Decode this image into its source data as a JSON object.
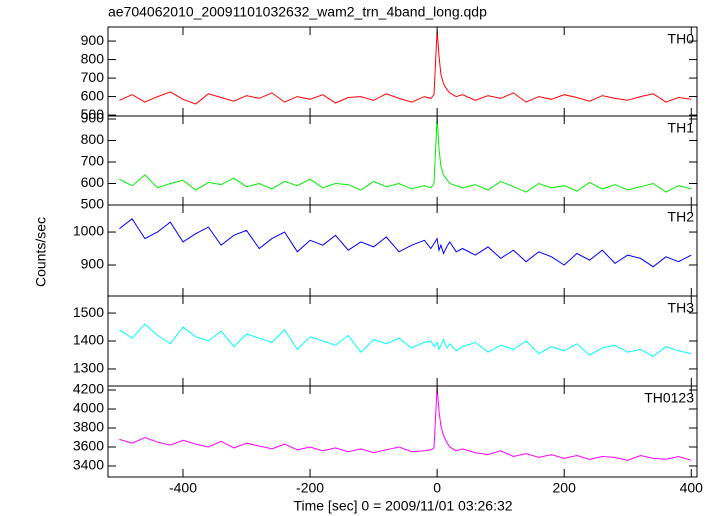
{
  "chart_data": {
    "type": "line",
    "title": "ae704062010_20091101032632_wam2_trn_4band_long.qdp",
    "xlabel": "Time [sec] 0 = 2009/11/01 03:26:32",
    "ylabel": "Counts/sec",
    "xlim": [
      -518,
      409
    ],
    "xticks": [
      -400,
      -200,
      0,
      200,
      400
    ],
    "x": [
      -500,
      -480,
      -460,
      -440,
      -420,
      -400,
      -380,
      -360,
      -340,
      -320,
      -300,
      -280,
      -260,
      -240,
      -220,
      -200,
      -180,
      -160,
      -140,
      -120,
      -100,
      -80,
      -60,
      -40,
      -20,
      -10,
      -5,
      0,
      3,
      6,
      10,
      15,
      20,
      30,
      40,
      60,
      80,
      100,
      120,
      140,
      160,
      180,
      200,
      220,
      240,
      260,
      280,
      300,
      320,
      340,
      360,
      380,
      400
    ],
    "panels": [
      {
        "name": "TH0",
        "color": "#ff0000",
        "ylim": [
          495,
          976
        ],
        "yticks": [
          500,
          600,
          700,
          800,
          900
        ],
        "values": [
          580,
          610,
          570,
          600,
          625,
          585,
          560,
          615,
          595,
          575,
          605,
          590,
          620,
          570,
          600,
          585,
          610,
          565,
          595,
          600,
          580,
          615,
          590,
          570,
          600,
          590,
          610,
          960,
          820,
          720,
          670,
          640,
          620,
          600,
          610,
          580,
          605,
          590,
          620,
          570,
          600,
          585,
          610,
          595,
          575,
          605,
          590,
          580,
          600,
          615,
          570,
          595,
          585
        ]
      },
      {
        "name": "TH1",
        "color": "#00ee00",
        "ylim": [
          500,
          914
        ],
        "yticks": [
          500,
          600,
          700,
          800,
          900
        ],
        "values": [
          620,
          590,
          640,
          580,
          600,
          615,
          570,
          605,
          595,
          625,
          585,
          600,
          575,
          610,
          590,
          620,
          580,
          600,
          595,
          570,
          610,
          585,
          600,
          575,
          590,
          580,
          600,
          905,
          760,
          680,
          640,
          620,
          600,
          590,
          580,
          595,
          570,
          610,
          585,
          560,
          600,
          580,
          590,
          565,
          605,
          575,
          595,
          570,
          585,
          600,
          560,
          590,
          575
        ]
      },
      {
        "name": "TH2",
        "color": "#0000ff",
        "ylim": [
          806,
          1082
        ],
        "yticks": [
          900,
          1000
        ],
        "values": [
          1010,
          1040,
          980,
          1000,
          1030,
          970,
          995,
          1015,
          960,
          990,
          1005,
          950,
          980,
          1000,
          940,
          975,
          960,
          990,
          945,
          970,
          955,
          985,
          940,
          960,
          975,
          950,
          965,
          980,
          945,
          960,
          935,
          955,
          970,
          940,
          950,
          930,
          955,
          920,
          945,
          910,
          940,
          925,
          900,
          935,
          915,
          945,
          905,
          930,
          920,
          895,
          925,
          910,
          930
        ]
      },
      {
        "name": "TH3",
        "color": "#00ffff",
        "ylim": [
          1239,
          1561
        ],
        "yticks": [
          1300,
          1400,
          1500
        ],
        "values": [
          1440,
          1410,
          1460,
          1420,
          1390,
          1450,
          1415,
          1400,
          1435,
          1380,
          1425,
          1410,
          1395,
          1440,
          1370,
          1415,
          1400,
          1385,
          1420,
          1360,
          1405,
          1390,
          1410,
          1375,
          1395,
          1400,
          1380,
          1395,
          1370,
          1385,
          1405,
          1375,
          1390,
          1365,
          1380,
          1395,
          1360,
          1385,
          1370,
          1400,
          1355,
          1380,
          1365,
          1390,
          1350,
          1375,
          1385,
          1360,
          1370,
          1345,
          1380,
          1365,
          1355
        ]
      },
      {
        "name": "TH0123",
        "color": "#ff00ff",
        "ylim": [
          3284,
          4242
        ],
        "yticks": [
          3400,
          3600,
          3800,
          4000,
          4200
        ],
        "values": [
          3680,
          3640,
          3700,
          3650,
          3620,
          3670,
          3630,
          3600,
          3660,
          3590,
          3640,
          3610,
          3580,
          3630,
          3570,
          3600,
          3560,
          3590,
          3550,
          3580,
          3540,
          3570,
          3600,
          3550,
          3560,
          3570,
          3590,
          4230,
          3980,
          3820,
          3720,
          3650,
          3600,
          3560,
          3580,
          3540,
          3520,
          3560,
          3500,
          3530,
          3490,
          3520,
          3480,
          3510,
          3470,
          3500,
          3490,
          3460,
          3510,
          3480,
          3470,
          3500,
          3460
        ]
      }
    ]
  }
}
